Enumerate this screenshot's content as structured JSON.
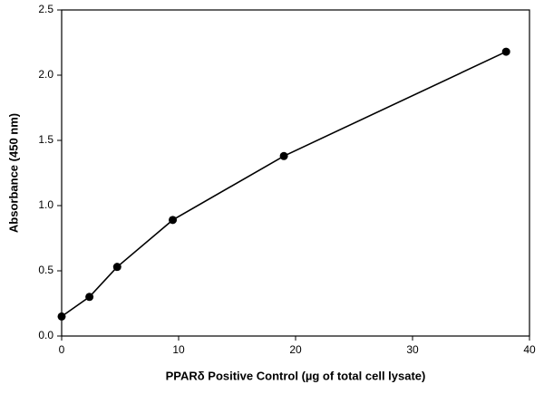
{
  "chart_data": {
    "type": "line",
    "x_label": "PPARδ Positive Control (µg of total cell lysate)",
    "y_label": "Absorbance (450 nm)",
    "x": [
      0,
      2.375,
      4.75,
      9.5,
      19,
      38
    ],
    "series": [
      {
        "color": "#000000",
        "values": [
          0.15,
          0.3,
          0.53,
          0.89,
          1.38,
          2.18
        ]
      }
    ],
    "xlim": [
      0,
      40
    ],
    "xticks": [
      0,
      10,
      20,
      30,
      40
    ],
    "ylim": [
      0,
      2.5
    ],
    "yticks": [
      {
        "value": 0,
        "label": "0.0"
      },
      0.5,
      {
        "value": 1,
        "label": "1.0"
      },
      1.5,
      {
        "value": 2,
        "label": "2.0"
      },
      2.5
    ],
    "grid": false,
    "markers": true
  }
}
